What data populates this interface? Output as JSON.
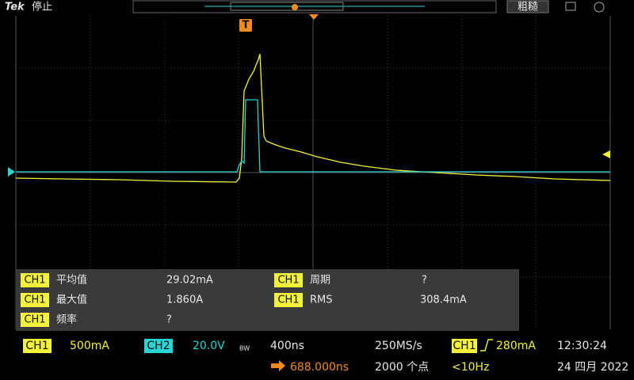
{
  "header": {
    "brand": "Tek",
    "status": "停止",
    "acquisition": "粗糙",
    "trigger_marker": "T"
  },
  "measurements": [
    {
      "source": "CH1",
      "name": "平均值",
      "value": "29.02mA"
    },
    {
      "source": "CH1",
      "name": "最大值",
      "value": "1.860A"
    },
    {
      "source": "CH1",
      "name": "频率",
      "value": "?"
    },
    {
      "source": "CH1",
      "name": "周期",
      "value": "?"
    },
    {
      "source": "CH1",
      "name": "RMS",
      "value": "308.4mA"
    }
  ],
  "status_bar": {
    "ch1": {
      "label": "CH1",
      "scale": "500mA"
    },
    "ch2": {
      "label": "CH2",
      "scale": "20.0V"
    },
    "bandwidth": "BW",
    "timebase": "400ns",
    "sample_rate": "250MS/s",
    "trigger": {
      "source": "CH1",
      "level": "280mA"
    },
    "time": "12:30:24",
    "position": "688.000ns",
    "record_length": "2000 个点",
    "frequency": "<10Hz",
    "date": "24 四月 2022"
  }
}
